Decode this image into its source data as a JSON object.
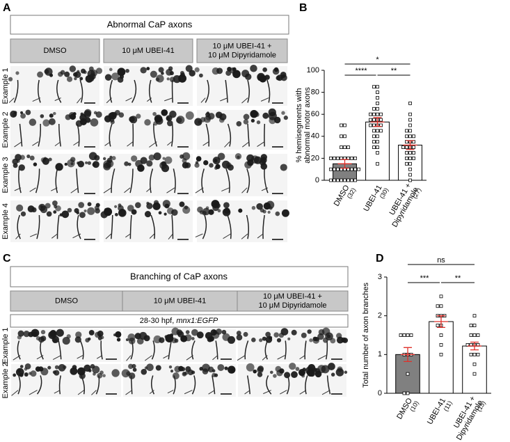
{
  "panel_labels": [
    "A",
    "B",
    "C",
    "D"
  ],
  "panel_a": {
    "title": "Abnormal CaP axons",
    "conditions": [
      "DMSO",
      "10 μM UBEI-41",
      "10 μM UBEI-41 +\n10 μM Dipyridamole"
    ],
    "rows": [
      "Example 1",
      "Example 2",
      "Example 3",
      "Example 4"
    ]
  },
  "panel_c": {
    "title": "Branching of CaP axons",
    "conditions": [
      "DMSO",
      "10 μM UBEI-41",
      "10 μM UBEI-41 +\n10 μM Dipyridamole"
    ],
    "subtitle": "28-30 hpf,",
    "subtitle_italic": "mnx1:EGFP",
    "rows": [
      "Example 1",
      "Example 2"
    ]
  },
  "chart_data": [
    {
      "type": "bar",
      "ylabel": "% hemisegments with\nabnormal motor axons",
      "categories": [
        "DMSO",
        "UBEI-41",
        "UBEI-41 +\nDipyridamole"
      ],
      "n_labels": [
        "(32)",
        "(30)",
        "(27)"
      ],
      "values": [
        15,
        53,
        32
      ],
      "errors": [
        4,
        4,
        4
      ],
      "colors": [
        "#808080",
        "#ffffff",
        "#ffffff"
      ],
      "error_color": "#e0302a",
      "points": [
        [
          0,
          0,
          0,
          0,
          0,
          0,
          0,
          0,
          10,
          10,
          10,
          10,
          10,
          10,
          10,
          10,
          10,
          20,
          20,
          20,
          20,
          20,
          20,
          20,
          20,
          30,
          30,
          30,
          40,
          40,
          50,
          50
        ],
        [
          15,
          25,
          30,
          30,
          35,
          35,
          40,
          40,
          45,
          45,
          45,
          50,
          50,
          50,
          50,
          55,
          55,
          55,
          55,
          60,
          60,
          60,
          60,
          65,
          65,
          70,
          75,
          80,
          85,
          85
        ],
        [
          0,
          5,
          10,
          15,
          15,
          20,
          20,
          20,
          25,
          25,
          25,
          30,
          30,
          30,
          30,
          35,
          35,
          35,
          40,
          40,
          40,
          45,
          45,
          50,
          55,
          60,
          70
        ]
      ],
      "significance": [
        "****",
        "**",
        "*"
      ],
      "ylim": [
        0,
        100
      ],
      "yticks": [
        0,
        20,
        40,
        60,
        80,
        100
      ]
    },
    {
      "type": "bar",
      "ylabel": "Total number of axon branches",
      "categories": [
        "DMSO",
        "UBEI-41",
        "UBEI-41 +\nDipyridamole"
      ],
      "n_labels": [
        "(10)",
        "(11)",
        "(15)"
      ],
      "values": [
        1.0,
        1.85,
        1.22
      ],
      "errors": [
        0.18,
        0.15,
        0.1
      ],
      "colors": [
        "#808080",
        "#ffffff",
        "#ffffff"
      ],
      "error_color": "#e0302a",
      "points": [
        [
          0,
          0,
          0.5,
          1,
          1,
          1.5,
          1.5,
          1.5,
          1.5,
          1
        ],
        [
          1,
          1.25,
          1.5,
          1.75,
          1.75,
          2,
          2,
          2,
          2.25,
          2.25,
          2.5
        ],
        [
          0.5,
          0.75,
          1,
          1,
          1,
          1.25,
          1.25,
          1.25,
          1.25,
          1.5,
          1.5,
          1.5,
          1.75,
          1.75,
          2
        ]
      ],
      "significance": [
        "***",
        "**",
        "ns"
      ],
      "ylim": [
        0,
        3
      ],
      "yticks": [
        0,
        1,
        2,
        3
      ]
    }
  ]
}
